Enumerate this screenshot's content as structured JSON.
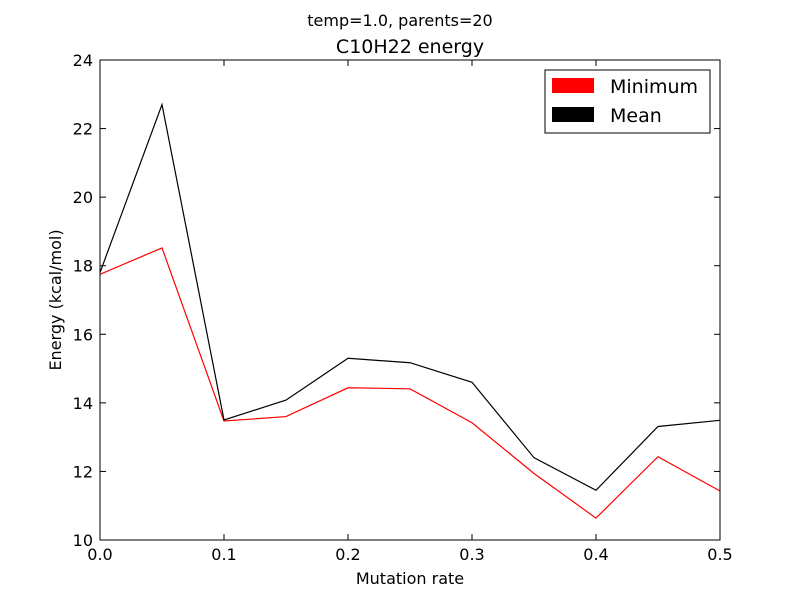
{
  "chart_data": {
    "type": "line",
    "suptitle": "temp=1.0, parents=20",
    "title": "C10H22 energy",
    "xlabel": "Mutation rate",
    "ylabel": "Energy (kcal/mol)",
    "xlim": [
      0,
      0.5
    ],
    "ylim": [
      10,
      24
    ],
    "xticks": [
      0.0,
      0.1,
      0.2,
      0.3,
      0.4,
      0.5
    ],
    "xtick_labels": [
      "0.0",
      "0.1",
      "0.2",
      "0.3",
      "0.4",
      "0.5"
    ],
    "yticks": [
      10,
      12,
      14,
      16,
      18,
      20,
      22,
      24
    ],
    "ytick_labels": [
      "10",
      "12",
      "14",
      "16",
      "18",
      "20",
      "22",
      "24"
    ],
    "grid": false,
    "legend_position": "top-right",
    "x": [
      0.0,
      0.05,
      0.1,
      0.15,
      0.2,
      0.25,
      0.3,
      0.35,
      0.4,
      0.45,
      0.5
    ],
    "series": [
      {
        "name": "Minimum",
        "color": "#ff0000",
        "values": [
          17.75,
          18.52,
          13.47,
          13.6,
          14.44,
          14.41,
          13.42,
          11.94,
          10.64,
          12.43,
          11.43
        ]
      },
      {
        "name": "Mean",
        "color": "#000000",
        "values": [
          17.8,
          22.7,
          13.5,
          14.08,
          15.3,
          15.17,
          14.6,
          12.4,
          11.45,
          13.31,
          13.49
        ]
      }
    ]
  }
}
